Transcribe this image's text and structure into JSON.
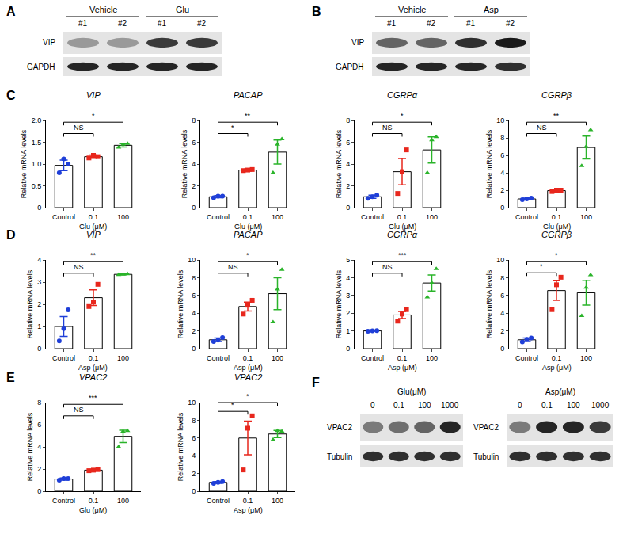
{
  "chart_data": [
    {
      "type": "bar",
      "panel": "C",
      "title": "VIP",
      "categories": [
        "Control",
        "0.1",
        "100"
      ],
      "xlabel": "Glu (μM)",
      "ylabel": "Relative mRNA levels",
      "values": [
        0.97,
        1.17,
        1.43
      ],
      "errors": [
        0.12,
        0.04,
        0.04
      ],
      "points": [
        [
          0.8,
          1.12,
          1.0
        ],
        [
          1.14,
          1.2,
          1.17
        ],
        [
          1.38,
          1.45,
          1.47
        ]
      ],
      "colors": [
        "#1f3fd8",
        "#e8271d",
        "#2ab42a"
      ],
      "ylim": [
        0,
        2
      ],
      "yticks": [
        0,
        0.5,
        {
          "value": 1,
          "label": "1.0"
        },
        1.5,
        {
          "value": 2,
          "label": "2.0"
        }
      ],
      "significance": [
        {
          "from": 0,
          "to": 1,
          "label": "NS"
        },
        {
          "from": 0,
          "to": 2,
          "label": "*"
        }
      ]
    },
    {
      "type": "bar",
      "title": "PACAP",
      "categories": [
        "Control",
        "0.1",
        "100"
      ],
      "xlabel": "Glu (μM)",
      "ylabel": "Relative mRNA levels",
      "values": [
        1.0,
        3.45,
        5.1
      ],
      "errors": [
        0.1,
        0.08,
        1.1
      ],
      "points": [
        [
          0.9,
          1.05,
          1.05
        ],
        [
          3.4,
          3.45,
          3.5
        ],
        [
          3.2,
          5.8,
          6.3
        ]
      ],
      "colors": [
        "#1f3fd8",
        "#e8271d",
        "#2ab42a"
      ],
      "ylim": [
        0,
        8
      ],
      "yticks": [
        0,
        2,
        4,
        6,
        8
      ],
      "significance": [
        {
          "from": 0,
          "to": 1,
          "label": "*"
        },
        {
          "from": 0,
          "to": 2,
          "label": "**"
        }
      ]
    },
    {
      "type": "bar",
      "title": "CGRPα",
      "categories": [
        "Control",
        "0.1",
        "100"
      ],
      "xlabel": "Glu (μM)",
      "ylabel": "Relative mRNA levels",
      "values": [
        1.0,
        3.3,
        5.3
      ],
      "errors": [
        0.15,
        1.2,
        1.2
      ],
      "points": [
        [
          0.85,
          1.0,
          1.15
        ],
        [
          1.3,
          3.3,
          5.3
        ],
        [
          3.2,
          6.2,
          6.5
        ]
      ],
      "colors": [
        "#1f3fd8",
        "#e8271d",
        "#2ab42a"
      ],
      "ylim": [
        0,
        8
      ],
      "yticks": [
        0,
        2,
        4,
        6,
        8
      ],
      "significance": [
        {
          "from": 0,
          "to": 1,
          "label": "NS"
        },
        {
          "from": 0,
          "to": 2,
          "label": "*"
        }
      ]
    },
    {
      "type": "bar",
      "title": "CGRPβ",
      "categories": [
        "Control",
        "0.1",
        "100"
      ],
      "xlabel": "Glu (μM)",
      "ylabel": "Relative mRNA levels",
      "values": [
        1.0,
        1.95,
        6.9
      ],
      "errors": [
        0.1,
        0.1,
        1.3
      ],
      "points": [
        [
          0.9,
          1.0,
          1.1
        ],
        [
          1.85,
          2.0,
          2.0
        ],
        [
          4.8,
          7.0,
          8.9
        ]
      ],
      "colors": [
        "#1f3fd8",
        "#e8271d",
        "#2ab42a"
      ],
      "ylim": [
        0,
        10
      ],
      "yticks": [
        0,
        2,
        4,
        6,
        8,
        10
      ],
      "significance": [
        {
          "from": 0,
          "to": 1,
          "label": "NS"
        },
        {
          "from": 0,
          "to": 2,
          "label": "**"
        }
      ]
    },
    {
      "type": "bar",
      "panel": "D",
      "title": "VIP",
      "categories": [
        "Control",
        "0.1",
        "100"
      ],
      "xlabel": "Asp (μM)",
      "ylabel": "Relative mRNA levels",
      "values": [
        1.0,
        2.3,
        3.35
      ],
      "errors": [
        0.45,
        0.35,
        0.02
      ],
      "points": [
        [
          0.35,
          0.9,
          1.75
        ],
        [
          1.9,
          2.1,
          2.9
        ],
        [
          3.33,
          3.35,
          3.37
        ]
      ],
      "colors": [
        "#1f3fd8",
        "#e8271d",
        "#2ab42a"
      ],
      "ylim": [
        0,
        4
      ],
      "yticks": [
        0,
        1,
        2,
        3,
        4
      ],
      "significance": [
        {
          "from": 0,
          "to": 1,
          "label": "NS"
        },
        {
          "from": 0,
          "to": 2,
          "label": "**"
        }
      ]
    },
    {
      "type": "bar",
      "title": "PACAP",
      "categories": [
        "Control",
        "0.1",
        "100"
      ],
      "xlabel": "Asp (μM)",
      "ylabel": "Relative mRNA levels",
      "values": [
        1.0,
        4.75,
        6.2
      ],
      "errors": [
        0.2,
        0.5,
        1.8
      ],
      "points": [
        [
          0.8,
          0.95,
          1.25
        ],
        [
          3.9,
          4.9,
          5.45
        ],
        [
          3.0,
          6.7,
          8.9
        ]
      ],
      "colors": [
        "#1f3fd8",
        "#e8271d",
        "#2ab42a"
      ],
      "ylim": [
        0,
        10
      ],
      "yticks": [
        0,
        2,
        4,
        6,
        8,
        10
      ],
      "significance": [
        {
          "from": 0,
          "to": 1,
          "label": "NS"
        },
        {
          "from": 0,
          "to": 2,
          "label": "*"
        }
      ]
    },
    {
      "type": "bar",
      "title": "CGRPα",
      "categories": [
        "Control",
        "0.1",
        "100"
      ],
      "xlabel": "Asp (μM)",
      "ylabel": "Relative mRNA levels",
      "values": [
        1.0,
        1.9,
        3.7
      ],
      "errors": [
        0.02,
        0.2,
        0.45
      ],
      "points": [
        [
          0.98,
          1.0,
          1.02
        ],
        [
          1.55,
          1.95,
          2.2
        ],
        [
          2.9,
          3.7,
          4.5
        ]
      ],
      "colors": [
        "#1f3fd8",
        "#e8271d",
        "#2ab42a"
      ],
      "ylim": [
        0,
        5
      ],
      "yticks": [
        0,
        1,
        2,
        3,
        4,
        5
      ],
      "significance": [
        {
          "from": 0,
          "to": 1,
          "label": "NS"
        },
        {
          "from": 0,
          "to": 2,
          "label": "***"
        }
      ]
    },
    {
      "type": "bar",
      "title": "CGRPβ",
      "categories": [
        "Control",
        "0.1",
        "100"
      ],
      "xlabel": "Asp (μM)",
      "ylabel": "Relative mRNA levels",
      "values": [
        1.0,
        6.55,
        6.3
      ],
      "errors": [
        0.2,
        1.1,
        1.4
      ],
      "points": [
        [
          0.75,
          1.05,
          1.2
        ],
        [
          4.4,
          7.2,
          8.05
        ],
        [
          3.7,
          6.9,
          8.3
        ]
      ],
      "colors": [
        "#1f3fd8",
        "#e8271d",
        "#2ab42a"
      ],
      "ylim": [
        0,
        10
      ],
      "yticks": [
        0,
        2,
        4,
        6,
        8,
        10
      ],
      "significance": [
        {
          "from": 0,
          "to": 1,
          "label": "*"
        },
        {
          "from": 0,
          "to": 2,
          "label": "*"
        }
      ]
    },
    {
      "type": "bar",
      "panel": "E",
      "title": "VPAC2",
      "categories": [
        "Control",
        "0.1",
        "100"
      ],
      "xlabel": "Glu (μM)",
      "ylabel": "Relative mRNA levels",
      "values": [
        1.1,
        1.9,
        4.95
      ],
      "errors": [
        0.1,
        0.05,
        0.55
      ],
      "points": [
        [
          1.0,
          1.15,
          1.15
        ],
        [
          1.85,
          1.9,
          1.95
        ],
        [
          4.0,
          5.4,
          5.45
        ]
      ],
      "colors": [
        "#1f3fd8",
        "#e8271d",
        "#2ab42a"
      ],
      "ylim": [
        0,
        8
      ],
      "yticks": [
        0,
        2,
        4,
        6,
        8
      ],
      "significance": [
        {
          "from": 0,
          "to": 1,
          "label": "NS"
        },
        {
          "from": 0,
          "to": 2,
          "label": "***"
        }
      ]
    },
    {
      "type": "bar",
      "title": "VPAC2",
      "categories": [
        "Control",
        "0.1",
        "100"
      ],
      "xlabel": "Asp (μM)",
      "ylabel": "Relative mRNA levels",
      "values": [
        1.0,
        6.0,
        6.45
      ],
      "errors": [
        0.1,
        1.9,
        0.4
      ],
      "points": [
        [
          0.9,
          1.0,
          1.1
        ],
        [
          2.4,
          7.1,
          8.5
        ],
        [
          5.8,
          6.8,
          6.75
        ]
      ],
      "colors": [
        "#1f3fd8",
        "#e8271d",
        "#2ab42a"
      ],
      "ylim": [
        0,
        10
      ],
      "yticks": [
        0,
        2,
        4,
        6,
        8,
        10
      ],
      "significance": [
        {
          "from": 0,
          "to": 1,
          "label": "*"
        },
        {
          "from": 0,
          "to": 2,
          "label": "*"
        }
      ]
    }
  ],
  "blots": [
    {
      "panel": "A",
      "groups": [
        {
          "label": "Vehicle",
          "lanes": [
            "#1",
            "#2"
          ]
        },
        {
          "label": "Glu",
          "lanes": [
            "#1",
            "#2"
          ]
        }
      ],
      "rows": [
        "VIP",
        "GAPDH"
      ]
    },
    {
      "panel": "B",
      "groups": [
        {
          "label": "Vehicle",
          "lanes": [
            "#1",
            "#2"
          ]
        },
        {
          "label": "Asp",
          "lanes": [
            "#1",
            "#2"
          ]
        }
      ],
      "rows": [
        "VIP",
        "GAPDH"
      ]
    },
    {
      "panel": "F",
      "header": "Glu(μM)",
      "lanes": [
        "0",
        "0.1",
        "100",
        "1000"
      ],
      "rows": [
        "VPAC2",
        "Tubulin"
      ]
    },
    {
      "header": "Asp(μM)",
      "lanes": [
        "0",
        "0.1",
        "100",
        "1000"
      ],
      "rows": [
        "VPAC2",
        "Tubulin"
      ]
    }
  ]
}
